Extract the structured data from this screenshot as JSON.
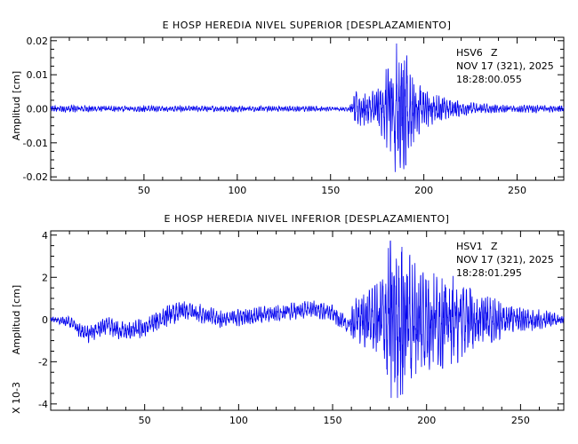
{
  "chart_data": [
    {
      "type": "line",
      "title": "E HOSP HEREDIA NIVEL SUPERIOR [DESPLAZAMIENTO]",
      "ylabel": "Amplitud [cm]",
      "xlabel": "",
      "xlim": [
        0,
        275
      ],
      "ylim": [
        -0.021,
        0.021
      ],
      "x_ticks": [
        50,
        100,
        150,
        200,
        250
      ],
      "y_ticks": [
        0.02,
        0.01,
        0.0,
        -0.01,
        -0.02
      ],
      "y_tick_labels": [
        "0.02",
        "0.01",
        "0.00",
        "-0.01",
        "-0.02"
      ],
      "scale_note": "",
      "station": "HSV6",
      "component": "Z",
      "date": "NOV 17 (321), 2025",
      "time": "18:28:00.055",
      "line_color": "#0000ee",
      "envelope": {
        "x": [
          0,
          10,
          20,
          40,
          60,
          80,
          100,
          120,
          140,
          155,
          160,
          163,
          170,
          175,
          180,
          183,
          186,
          188,
          190,
          192,
          195,
          200,
          205,
          210,
          220,
          230,
          240,
          250,
          260,
          270,
          275
        ],
        "amp": [
          0.0008,
          0.0012,
          0.0009,
          0.0008,
          0.0009,
          0.0008,
          0.0009,
          0.0008,
          0.0008,
          0.0006,
          0.0007,
          0.005,
          0.005,
          0.0055,
          0.012,
          0.018,
          0.02,
          0.019,
          0.017,
          0.014,
          0.009,
          0.006,
          0.0045,
          0.0035,
          0.0022,
          0.0015,
          0.0012,
          0.001,
          0.0012,
          0.0009,
          0.0008
        ]
      }
    },
    {
      "type": "line",
      "title": "E HOSP HEREDIA NIVEL INFERIOR [DESPLAZAMIENTO]",
      "ylabel": "Amplitud [cm]",
      "xlabel": "",
      "xlim": [
        0,
        273
      ],
      "ylim": [
        -4.3,
        4.2
      ],
      "x_ticks": [
        50,
        100,
        150,
        200,
        250
      ],
      "y_ticks": [
        4,
        2,
        0,
        -2,
        -4
      ],
      "y_tick_labels": [
        "4",
        "2",
        "0",
        "-2",
        "-4"
      ],
      "scale_note": "X 10-3",
      "station": "HSV1",
      "component": "Z",
      "date": "NOV 17 (321), 2025",
      "time": "18:28:01.295",
      "line_color": "#0000ee",
      "baseline": {
        "x": [
          0,
          10,
          15,
          20,
          30,
          40,
          50,
          60,
          70,
          80,
          90,
          100,
          110,
          120,
          130,
          140,
          150,
          158,
          163
        ],
        "y": [
          0,
          -0.1,
          -0.5,
          -0.7,
          -0.3,
          -0.6,
          -0.4,
          0.1,
          0.4,
          0.3,
          0.0,
          0.1,
          0.2,
          0.3,
          0.4,
          0.5,
          0.3,
          -0.3,
          0.0
        ]
      },
      "envelope": {
        "x": [
          0,
          20,
          60,
          100,
          140,
          158,
          163,
          170,
          175,
          180,
          182,
          185,
          188,
          190,
          195,
          200,
          210,
          220,
          230,
          240,
          250,
          260,
          270,
          273
        ],
        "amp": [
          0.1,
          0.4,
          0.5,
          0.4,
          0.4,
          0.4,
          1.2,
          1.4,
          1.8,
          3.5,
          4.1,
          3.8,
          3.9,
          3.2,
          2.6,
          2.4,
          2.3,
          1.9,
          1.2,
          0.9,
          0.6,
          0.5,
          0.3,
          0.2
        ]
      }
    }
  ]
}
